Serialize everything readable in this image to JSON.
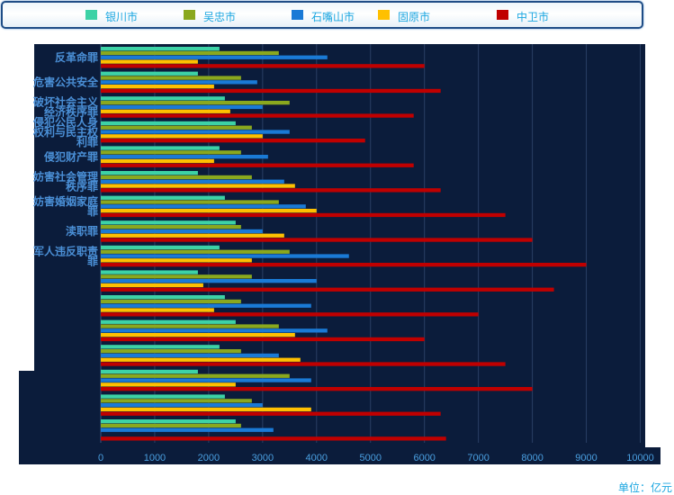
{
  "chart_data": {
    "type": "bar",
    "orientation": "horizontal",
    "categories": [
      "反革命罪",
      "危害公共安全",
      "破坏社会主义经济秩序罪",
      "侵犯公民人身权利与民主权利罪",
      "侵犯财产罪",
      "妨害社会管理秩序罪",
      "妨害婚姻家庭罪",
      "渎职罪",
      "军人违反职责罪",
      "",
      "",
      "",
      "",
      "",
      "",
      ""
    ],
    "series": [
      {
        "name": "银川市",
        "color": "#3dd2a6",
        "values": [
          2200,
          1800,
          2300,
          2500,
          2200,
          1800,
          2300,
          2500,
          2200,
          1800,
          2300,
          2500,
          2200,
          1800,
          2300,
          2500
        ]
      },
      {
        "name": "吴忠市",
        "color": "#8aa81e",
        "values": [
          3300,
          2600,
          3500,
          2800,
          2600,
          2800,
          3300,
          2600,
          3500,
          2800,
          2600,
          3300,
          2600,
          3500,
          2800,
          2600
        ]
      },
      {
        "name": "石嘴山市",
        "color": "#1a7ad6",
        "values": [
          4200,
          2900,
          3000,
          3500,
          3100,
          3400,
          3800,
          3000,
          4600,
          4000,
          3900,
          4200,
          3300,
          3900,
          3000,
          3200
        ]
      },
      {
        "name": "固原市",
        "color": "#ffc000",
        "values": [
          1800,
          2100,
          2400,
          3000,
          2100,
          3600,
          4000,
          3400,
          2800,
          1900,
          2100,
          3600,
          3700,
          2500,
          3900,
          0
        ]
      },
      {
        "name": "中卫市",
        "color": "#c00000",
        "values": [
          6000,
          6300,
          5800,
          4900,
          5800,
          6300,
          7500,
          8000,
          9000,
          8400,
          7000,
          6000,
          7500,
          8000,
          6300,
          6400
        ]
      }
    ],
    "xlim": [
      0,
      10000
    ],
    "xticks": [
      "0",
      "1000",
      "2000",
      "3000",
      "4000",
      "5000",
      "6000",
      "7000",
      "8000",
      "9000",
      "10000"
    ],
    "grid": true,
    "legend_position": "top",
    "unit_label": "单位：亿元"
  }
}
